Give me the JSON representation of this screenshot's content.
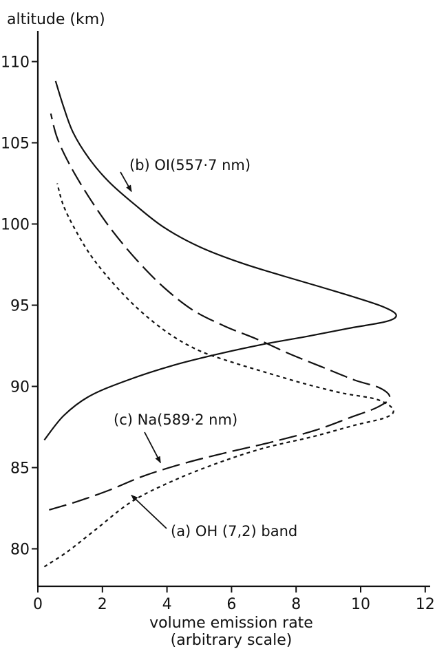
{
  "chart_data": {
    "type": "line",
    "title": "",
    "xlabel": "volume emission rate",
    "xlabel_sub": "(arbitrary scale)",
    "ylabel": "altitude (km)",
    "xlim": [
      0,
      12
    ],
    "ylim": [
      78,
      112
    ],
    "x_ticks": [
      0,
      2,
      4,
      6,
      8,
      10,
      12
    ],
    "y_ticks": [
      80,
      85,
      90,
      95,
      100,
      105,
      110
    ],
    "grid": false,
    "legend": "none",
    "series": [
      {
        "name": "(b) OI(557·7 nm)",
        "style": "solid",
        "label_anchor": [
          2.9,
          102.0
        ],
        "points": [
          [
            0.2,
            86.7
          ],
          [
            0.8,
            88.2
          ],
          [
            1.6,
            89.4
          ],
          [
            2.8,
            90.4
          ],
          [
            4.2,
            91.3
          ],
          [
            5.6,
            92.0
          ],
          [
            7.0,
            92.6
          ],
          [
            8.4,
            93.1
          ],
          [
            9.7,
            93.6
          ],
          [
            10.8,
            94.0
          ],
          [
            11.1,
            94.4
          ],
          [
            10.7,
            94.9
          ],
          [
            9.8,
            95.5
          ],
          [
            8.8,
            96.1
          ],
          [
            7.6,
            96.8
          ],
          [
            6.3,
            97.6
          ],
          [
            5.0,
            98.6
          ],
          [
            3.9,
            99.8
          ],
          [
            3.0,
            101.2
          ],
          [
            2.2,
            102.6
          ],
          [
            1.6,
            104.0
          ],
          [
            1.1,
            105.6
          ],
          [
            0.8,
            107.2
          ],
          [
            0.55,
            108.8
          ]
        ]
      },
      {
        "name": "(c) Na(589·2 nm)",
        "style": "dashed",
        "label_anchor": [
          3.8,
          85.3
        ],
        "points": [
          [
            0.35,
            82.4
          ],
          [
            1.2,
            82.9
          ],
          [
            2.2,
            83.6
          ],
          [
            3.3,
            84.5
          ],
          [
            4.6,
            85.3
          ],
          [
            6.0,
            86.0
          ],
          [
            7.3,
            86.6
          ],
          [
            8.6,
            87.3
          ],
          [
            9.7,
            88.1
          ],
          [
            10.5,
            88.7
          ],
          [
            10.9,
            89.3
          ],
          [
            10.6,
            89.9
          ],
          [
            9.8,
            90.4
          ],
          [
            8.8,
            91.2
          ],
          [
            7.8,
            92.0
          ],
          [
            6.8,
            92.9
          ],
          [
            5.8,
            93.7
          ],
          [
            4.8,
            94.7
          ],
          [
            3.9,
            96.1
          ],
          [
            3.1,
            97.7
          ],
          [
            2.3,
            99.6
          ],
          [
            1.6,
            101.6
          ],
          [
            1.0,
            103.6
          ],
          [
            0.6,
            105.3
          ],
          [
            0.4,
            106.8
          ]
        ]
      },
      {
        "name": "(a) OH (7,2) band",
        "style": "dotted",
        "label_anchor": [
          2.9,
          83.3
        ],
        "points": [
          [
            0.2,
            78.9
          ],
          [
            0.9,
            79.8
          ],
          [
            1.8,
            81.2
          ],
          [
            2.9,
            82.9
          ],
          [
            4.2,
            84.2
          ],
          [
            5.6,
            85.3
          ],
          [
            7.0,
            86.2
          ],
          [
            8.5,
            86.9
          ],
          [
            9.8,
            87.6
          ],
          [
            10.8,
            88.1
          ],
          [
            11.0,
            88.6
          ],
          [
            10.5,
            89.2
          ],
          [
            9.4,
            89.6
          ],
          [
            8.2,
            90.2
          ],
          [
            7.0,
            90.9
          ],
          [
            6.0,
            91.5
          ],
          [
            5.0,
            92.2
          ],
          [
            4.1,
            93.2
          ],
          [
            3.2,
            94.6
          ],
          [
            2.4,
            96.2
          ],
          [
            1.7,
            97.9
          ],
          [
            1.2,
            99.5
          ],
          [
            0.8,
            101.1
          ],
          [
            0.6,
            102.5
          ]
        ]
      }
    ],
    "annotations": [
      {
        "text": "(b) OI(557·7 nm)",
        "series": 0
      },
      {
        "text": "(c) Na(589·2 nm)",
        "series": 1
      },
      {
        "text": "(a) OH (7,2) band",
        "series": 2
      }
    ]
  }
}
